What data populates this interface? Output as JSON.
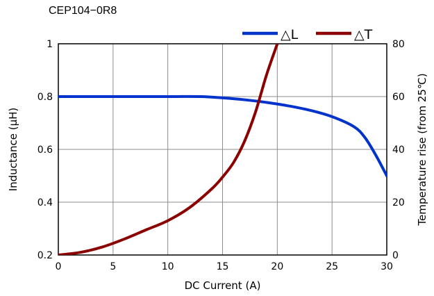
{
  "chart_data": {
    "type": "line",
    "title": "CEP104−0R8",
    "xlabel": "DC Current (A)",
    "ylabel_left": "Inductance (µH)",
    "ylabel_right": "Temperature rise (from 25℃)",
    "xlim": [
      0,
      30
    ],
    "ylim_left": [
      0.2,
      1
    ],
    "ylim_right": [
      0,
      80
    ],
    "x_ticks": [
      "0",
      "5",
      "10",
      "15",
      "20",
      "25",
      "30"
    ],
    "y_ticks_left": [
      "0.2",
      "0.4",
      "0.6",
      "0.8",
      "1"
    ],
    "y_ticks_right": [
      "0",
      "20",
      "40",
      "60",
      "80"
    ],
    "grid": true,
    "legend_position": "top-right",
    "series": [
      {
        "name": "△L",
        "axis": "left",
        "color": "#0033cc",
        "x": [
          0,
          5,
          10,
          13,
          15,
          17,
          19,
          21,
          23,
          25,
          27,
          28,
          29,
          30
        ],
        "y": [
          0.8,
          0.8,
          0.8,
          0.8,
          0.795,
          0.788,
          0.778,
          0.765,
          0.748,
          0.724,
          0.686,
          0.645,
          0.578,
          0.5
        ]
      },
      {
        "name": "△T",
        "axis": "right",
        "color": "#8b0000",
        "x": [
          0,
          2,
          4,
          6,
          8,
          10,
          12,
          14,
          15,
          16,
          17,
          18,
          19,
          20
        ],
        "y": [
          0,
          1,
          3,
          6,
          9.5,
          13,
          18,
          25,
          29.5,
          35,
          43,
          54,
          68,
          80
        ]
      }
    ]
  }
}
